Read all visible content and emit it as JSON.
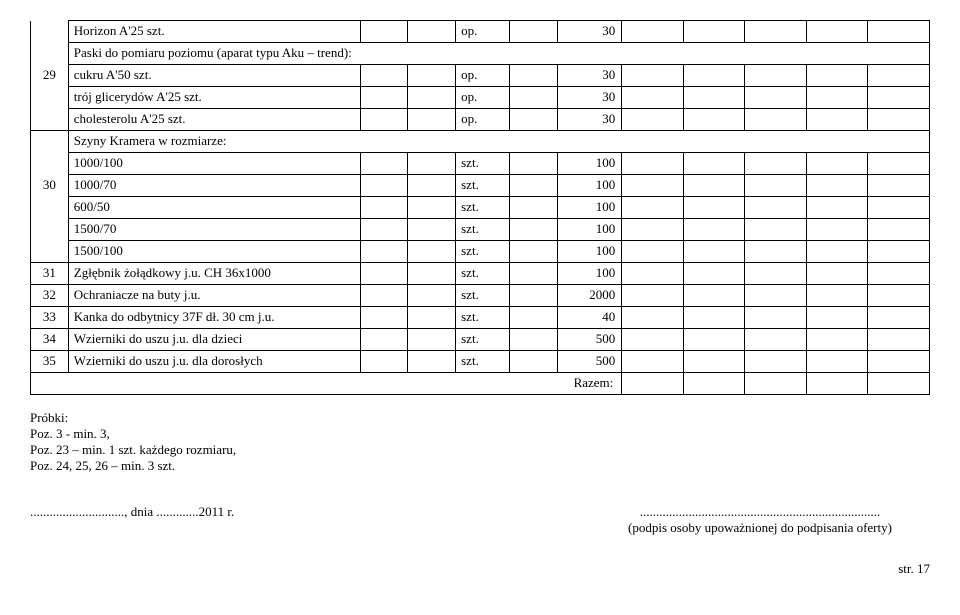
{
  "rows": [
    {
      "num": "",
      "numStyle": "mid",
      "name": "Horizon A'25 szt.",
      "unit": "op.",
      "qty": "30"
    },
    {
      "num": "",
      "numStyle": "mid",
      "name": "Paski do pomiaru poziomu (aparat typu Aku – trend):",
      "unit": "",
      "qty": "",
      "merged": true
    },
    {
      "num": "29",
      "numStyle": "mid",
      "name": "cukru A'50 szt.",
      "unit": "op.",
      "qty": "30"
    },
    {
      "num": "",
      "numStyle": "mid",
      "name": "trój glicerydów A'25 szt.",
      "unit": "op.",
      "qty": "30"
    },
    {
      "num": "",
      "numStyle": "last",
      "name": "cholesterolu A'25 szt.",
      "unit": "op.",
      "qty": "30"
    },
    {
      "num": "",
      "numStyle": "top",
      "name": "Szyny Kramera w rozmiarze:",
      "unit": "",
      "qty": "",
      "merged": true
    },
    {
      "num": "",
      "numStyle": "mid",
      "name": "1000/100",
      "unit": "szt.",
      "qty": "100"
    },
    {
      "num": "30",
      "numStyle": "mid",
      "name": "1000/70",
      "unit": "szt.",
      "qty": "100"
    },
    {
      "num": "",
      "numStyle": "mid",
      "name": "600/50",
      "unit": "szt.",
      "qty": "100"
    },
    {
      "num": "",
      "numStyle": "mid",
      "name": "1500/70",
      "unit": "szt.",
      "qty": "100"
    },
    {
      "num": "",
      "numStyle": "last",
      "name": "1500/100",
      "unit": "szt.",
      "qty": "100"
    },
    {
      "num": "31",
      "numStyle": "full",
      "name": "Zgłębnik żołądkowy j.u. CH 36x1000",
      "unit": "szt.",
      "qty": "100"
    },
    {
      "num": "32",
      "numStyle": "full",
      "name": "Ochraniacze na buty j.u.",
      "unit": "szt.",
      "qty": "2000"
    },
    {
      "num": "33",
      "numStyle": "full",
      "name": "Kanka do odbytnicy 37F dł. 30 cm j.u.",
      "unit": "szt.",
      "qty": "40"
    },
    {
      "num": "34",
      "numStyle": "full",
      "name": "Wzierniki do uszu j.u. dla dzieci",
      "unit": "szt.",
      "qty": "500"
    },
    {
      "num": "35",
      "numStyle": "full",
      "name": "Wzierniki do uszu j.u. dla dorosłych",
      "unit": "szt.",
      "qty": "500"
    }
  ],
  "razemLabel": "Razem:",
  "footerLeft": {
    "line1": "Próbki:",
    "line2": "Poz. 3 - min. 3,",
    "line3": "Poz. 23 – min. 1 szt. każdego rozmiaru,",
    "line4": "Poz. 24, 25, 26 – min. 3 szt."
  },
  "dateLine": "............................., dnia .............2011 r.",
  "sigDots": "..........................................................................",
  "sigLabel": "(podpis osoby upoważnionej do podpisania oferty)",
  "pageNum": "str. 17"
}
